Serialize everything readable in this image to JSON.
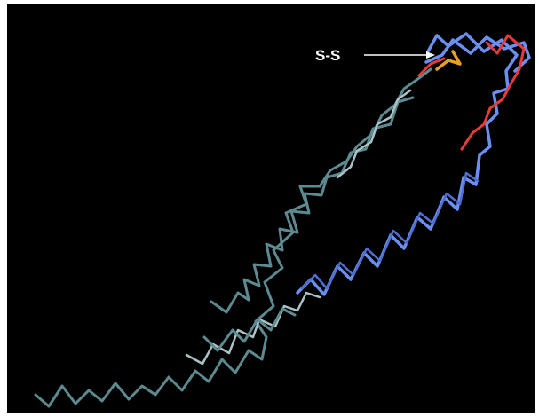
{
  "annotation": {
    "label": "S-S"
  }
}
